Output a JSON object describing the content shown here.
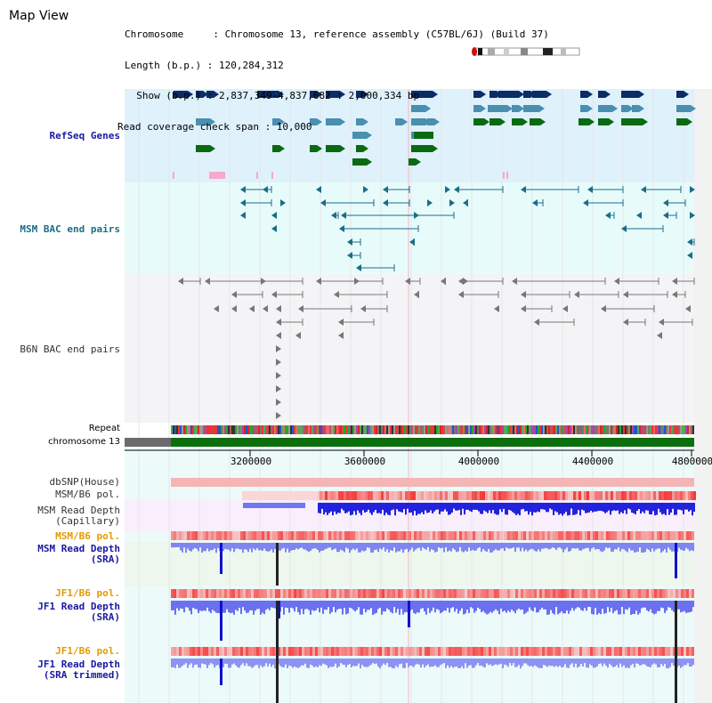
{
  "title": "Map View",
  "header": {
    "chromosome": "Chromosome     : Chromosome 13, reference assembly (C57BL/6J) (Build 37)",
    "length": "Length (b.p.) : 120,284,312",
    "show": "  Show (b.p.) : 2,837,349-4,837,682 : 2,000,334 bp",
    "span": "Read coverage check span : 10,000"
  },
  "tracks": {
    "refseq": "RefSeq Genes",
    "msm_bac": "MSM BAC end pairs",
    "b6n_bac": "B6N BAC end pairs",
    "repeat": "Repeat",
    "chromosome": "chromosome 13",
    "dbsnp": "dbSNP(House)",
    "msm_b6_pol": "MSM/B6 pol.",
    "msm_depth_cap": "MSM Read Depth\n(Capillary)",
    "msm_b6_pol_2": "MSM/B6 pol.",
    "msm_depth_sra": "MSM Read Depth\n(SRA)",
    "jf1_b6_pol": "JF1/B6 pol.",
    "jf1_depth_sra": "JF1 Read Depth\n(SRA)",
    "jf1_b6_pol_2": "JF1/B6 pol.",
    "jf1_depth_trim": "JF1 Read Depth\n(SRA trimmed)"
  },
  "axis": {
    "ticks": [
      "3200000",
      "3600000",
      "4000000",
      "4400000",
      "4800000"
    ]
  },
  "colors": {
    "refseq_bg": "#dff1fb",
    "msm_bac_bg": "#e8fbfb",
    "b6n_bg": "#f4f4f6",
    "gene_navy": "#0b2c66",
    "gene_blue": "#4a8fb0",
    "gene_green": "#0a6a12",
    "bac_teal": "#1a6e88",
    "b6n_gray": "#777777",
    "msm_cap_bg": "#f8eefc",
    "msm_sra_bg": "#edf7ee",
    "jf1_bg": "#e8fbfb",
    "label_navy": "#1919a3",
    "label_teal": "#1b6f85",
    "label_orange": "#e49a00"
  }
}
